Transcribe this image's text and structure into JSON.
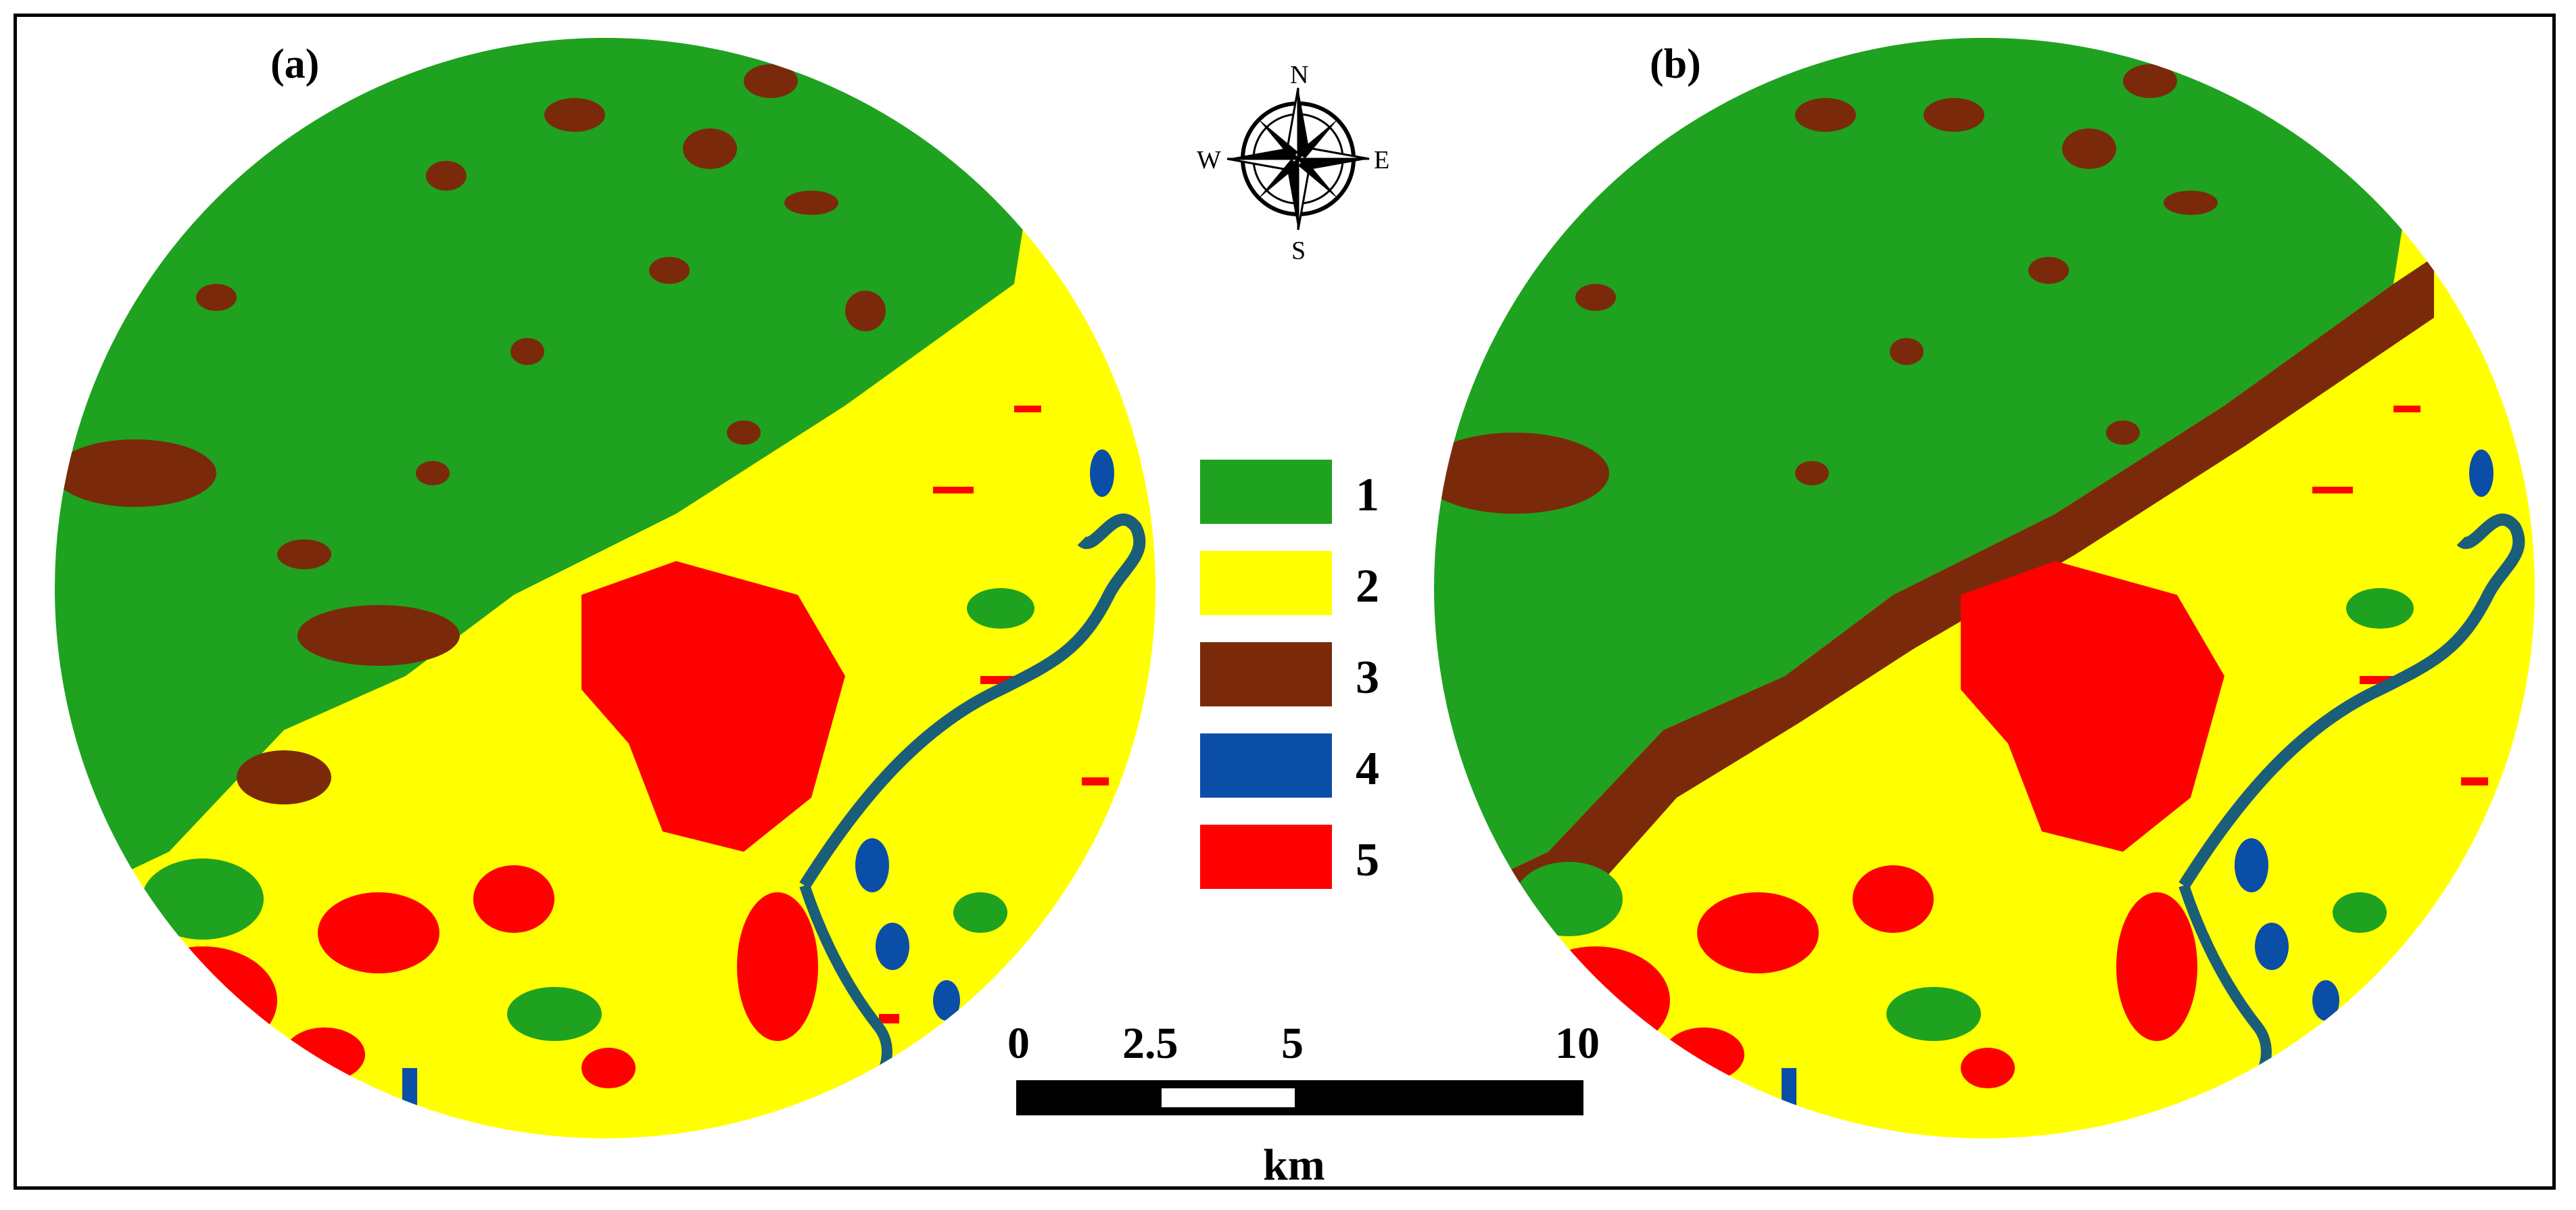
{
  "panels": [
    {
      "label": "(a)"
    },
    {
      "label": "(b)"
    }
  ],
  "compass": {
    "north": "N",
    "south": "S",
    "east": "E",
    "west": "W"
  },
  "legend": [
    {
      "label": "1",
      "color": "#1fa21f"
    },
    {
      "label": "2",
      "color": "#ffff00"
    },
    {
      "label": "3",
      "color": "#7a2a0a"
    },
    {
      "label": "4",
      "color": "#0a4ea8"
    },
    {
      "label": "5",
      "color": "#ff0000"
    }
  ],
  "scale_bar": {
    "ticks": [
      "0",
      "2.5",
      "5",
      "10"
    ],
    "unit": "km"
  },
  "colors": {
    "forest": "#1fa21f",
    "agriculture": "#ffff00",
    "bare": "#7a2a0a",
    "water": "#0a4ea8",
    "urban": "#ff0000"
  }
}
